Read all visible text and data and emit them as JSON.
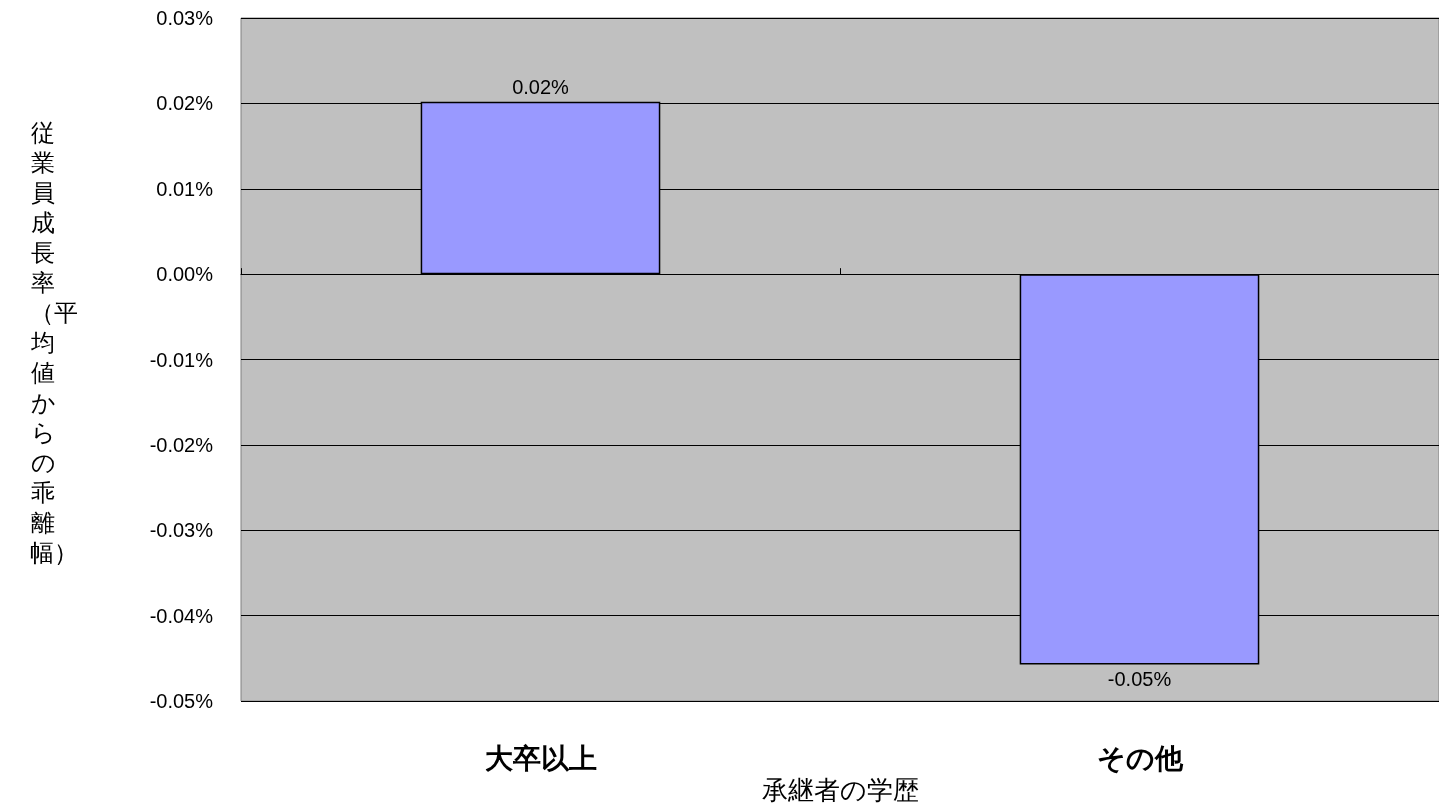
{
  "chart_data": {
    "type": "bar",
    "xlabel": "承継者の学歴",
    "ylabel": "従業員成長率（平均値からの乖離幅）",
    "categories": [
      "大卒以上",
      "その他"
    ],
    "values": [
      0.0202,
      -0.0457
    ],
    "value_labels": [
      "0.02%",
      "-0.05%"
    ],
    "color": "#9999ff",
    "ylim": [
      -0.05,
      0.03
    ],
    "yticks": [
      {
        "value": -0.05,
        "label": "-0.05%"
      },
      {
        "value": -0.04,
        "label": "-0.04%"
      },
      {
        "value": -0.03,
        "label": "-0.03%"
      },
      {
        "value": -0.02,
        "label": "-0.02%"
      },
      {
        "value": -0.01,
        "label": "-0.01%"
      },
      {
        "value": 0,
        "label": "0.00%"
      },
      {
        "value": 0.01,
        "label": "0.01%"
      },
      {
        "value": 0.02,
        "label": "0.02%"
      },
      {
        "value": 0.03,
        "label": "0.03%"
      }
    ],
    "grid": "y"
  }
}
